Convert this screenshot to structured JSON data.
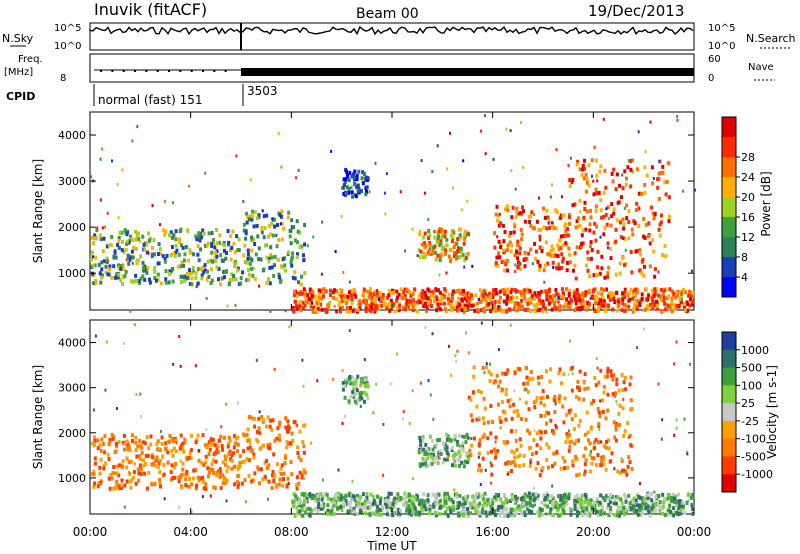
{
  "header": {
    "station": "Inuvik (fitACF)",
    "beam": "Beam 00",
    "date": "19/Dec/2013"
  },
  "top_panels": {
    "nsky_label": "N.Sky",
    "nsearch_label": "N.Search",
    "nsky_ticks": [
      "10^5",
      "10^0"
    ],
    "nsearch_ticks": [
      "10^5",
      "10^0"
    ],
    "freq_label": "Freq.",
    "freq_unit": "[MHz]",
    "freq_tick": "8",
    "nave_label": "Nave",
    "nave_ticks": [
      "60",
      "0"
    ],
    "cpid_label": "CPID",
    "cpid_segments": [
      {
        "label": "normal (fast) 151",
        "start_hour": 0,
        "end_hour": 6.0
      },
      {
        "label": "3503",
        "start_hour": 6.0,
        "end_hour": 24
      }
    ]
  },
  "chart_data": [
    {
      "type": "heatmap",
      "title": "",
      "quantity": "Power",
      "xlabel": "",
      "ylabel": "Slant Range [km]",
      "xlim": [
        0,
        24
      ],
      "ylim": [
        200,
        4500
      ],
      "y_ticks": [
        "1000",
        "2000",
        "3000",
        "4000"
      ],
      "colorbar_label": "Power [dB]",
      "colorbar_ticks": [
        "4",
        "8",
        "12",
        "16",
        "20",
        "24",
        "28"
      ],
      "colorbar_colors": [
        "#0000ff",
        "#1b3fb8",
        "#2f7f5a",
        "#3fa03c",
        "#a0d024",
        "#ffb000",
        "#ff7000",
        "#ff2a00",
        "#e00000"
      ],
      "scatter_regions": [
        {
          "hours": [
            0.0,
            6.0
          ],
          "range_km": [
            800,
            2000
          ],
          "level": "low-mid"
        },
        {
          "hours": [
            6.0,
            8.5
          ],
          "range_km": [
            800,
            2400
          ],
          "level": "low-mid"
        },
        {
          "hours": [
            8.0,
            23.9
          ],
          "range_km": [
            200,
            700
          ],
          "level": "high"
        },
        {
          "hours": [
            13.0,
            15.0
          ],
          "range_km": [
            1300,
            2000
          ],
          "level": "mid-high"
        },
        {
          "hours": [
            16.0,
            19.0
          ],
          "range_km": [
            1100,
            2500
          ],
          "level": "high"
        },
        {
          "hours": [
            19.0,
            23.0
          ],
          "range_km": [
            900,
            3500
          ],
          "level": "high"
        },
        {
          "hours": [
            10.0,
            11.0
          ],
          "range_km": [
            2700,
            3300
          ],
          "level": "low"
        }
      ]
    },
    {
      "type": "heatmap",
      "title": "",
      "quantity": "Velocity",
      "xlabel": "Time UT",
      "ylabel": "Slant Range [km]",
      "xlim": [
        0,
        24
      ],
      "ylim": [
        200,
        4500
      ],
      "x_ticks": [
        "00:00",
        "04:00",
        "08:00",
        "12:00",
        "16:00",
        "20:00",
        "00:00"
      ],
      "y_ticks": [
        "1000",
        "2000",
        "3000",
        "4000"
      ],
      "colorbar_label": "Velocity [m s-1]",
      "colorbar_ticks": [
        "1000",
        "500",
        "100",
        "25",
        "-25",
        "-100",
        "-500",
        "-1000"
      ],
      "colorbar_colors": [
        "#1e3fa0",
        "#2e6f6a",
        "#3f9f3f",
        "#7fcf3f",
        "#c8c8c8",
        "#ffa000",
        "#ff7800",
        "#ff3c00",
        "#e00000"
      ],
      "scatter_regions": [
        {
          "hours": [
            0.0,
            6.0
          ],
          "range_km": [
            800,
            2000
          ],
          "velocity": "negative"
        },
        {
          "hours": [
            6.0,
            8.5
          ],
          "range_km": [
            800,
            2400
          ],
          "velocity": "negative"
        },
        {
          "hours": [
            8.0,
            23.9
          ],
          "range_km": [
            200,
            700
          ],
          "velocity": "positive"
        },
        {
          "hours": [
            13.0,
            15.0
          ],
          "range_km": [
            1300,
            2000
          ],
          "velocity": "positive"
        },
        {
          "hours": [
            15.0,
            21.5
          ],
          "range_km": [
            1100,
            3500
          ],
          "velocity": "negative"
        },
        {
          "hours": [
            10.0,
            11.0
          ],
          "range_km": [
            2700,
            3300
          ],
          "velocity": "positive"
        }
      ]
    }
  ]
}
